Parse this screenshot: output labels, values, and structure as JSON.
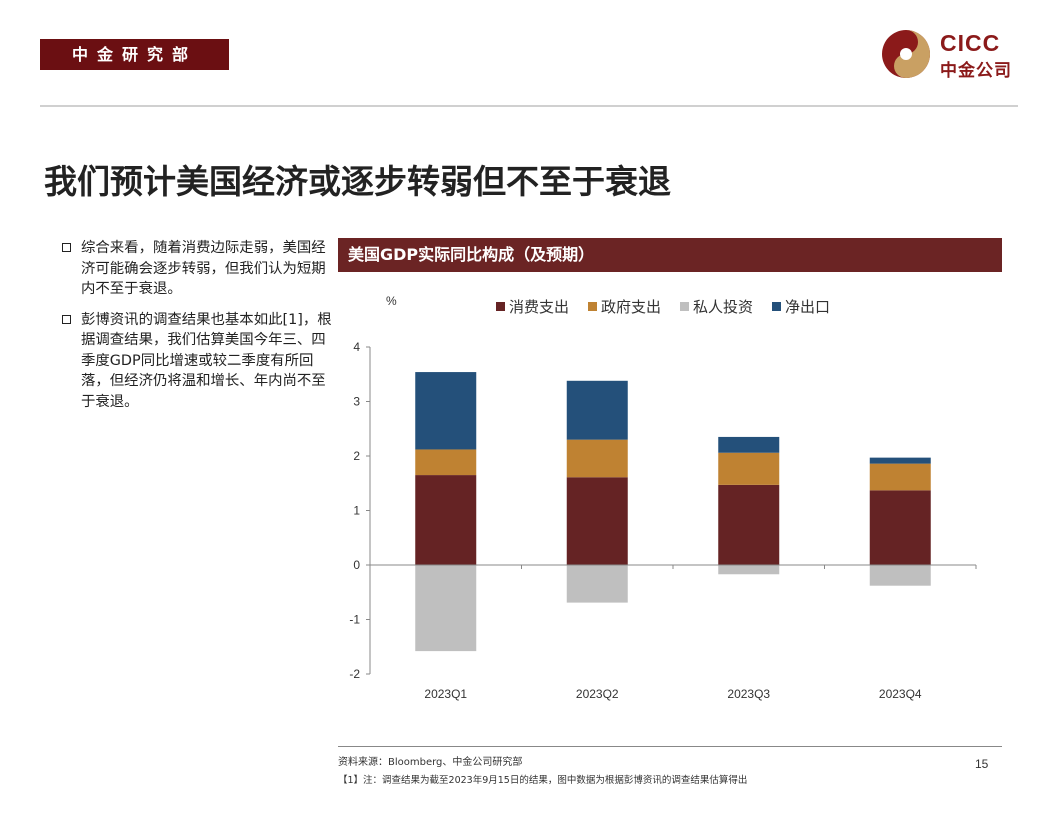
{
  "header": {
    "department": "中金研究部",
    "logo_en": "CICC",
    "logo_cn": "中金公司"
  },
  "title": "我们预计美国经济或逐步转弱但不至于衰退",
  "bullets": [
    "综合来看，随着消费边际走弱，美国经济可能确会逐步转弱，但我们认为短期内不至于衰退。",
    "彭博资讯的调查结果也基本如此[1]，根据调查结果，我们估算美国今年三、四季度GDP同比增速或较二季度有所回落，但经济仍将温和增长、年内尚不至于衰退。"
  ],
  "chart_header": "美国GDP实际同比构成（及预期）",
  "chart_data": {
    "type": "bar",
    "stacked": true,
    "ylabel": "%",
    "ylim": [
      -2,
      4
    ],
    "yticks": [
      -2,
      -1,
      0,
      1,
      2,
      3,
      4
    ],
    "categories": [
      "2023Q1",
      "2023Q2",
      "2023Q3",
      "2023Q4"
    ],
    "series": [
      {
        "name": "消费支出",
        "color": "#652324",
        "values": [
          1.65,
          1.61,
          1.47,
          1.37
        ]
      },
      {
        "name": "政府支出",
        "color": "#bf8232",
        "values": [
          0.47,
          0.69,
          0.59,
          0.49
        ]
      },
      {
        "name": "私人投资",
        "color": "#bfbfbf",
        "values": [
          -1.58,
          -0.69,
          -0.17,
          -0.38
        ]
      },
      {
        "name": "净出口",
        "color": "#24507a",
        "values": [
          1.42,
          1.08,
          0.29,
          0.11
        ]
      }
    ],
    "legend_position": "top",
    "grid": false
  },
  "source": "资料来源：Bloomberg、中金公司研究部",
  "footnote": "【1】注：调查结果为截至2023年9月15日的结果，图中数据为根据彭博资讯的调查结果估算得出",
  "page_number": "15"
}
